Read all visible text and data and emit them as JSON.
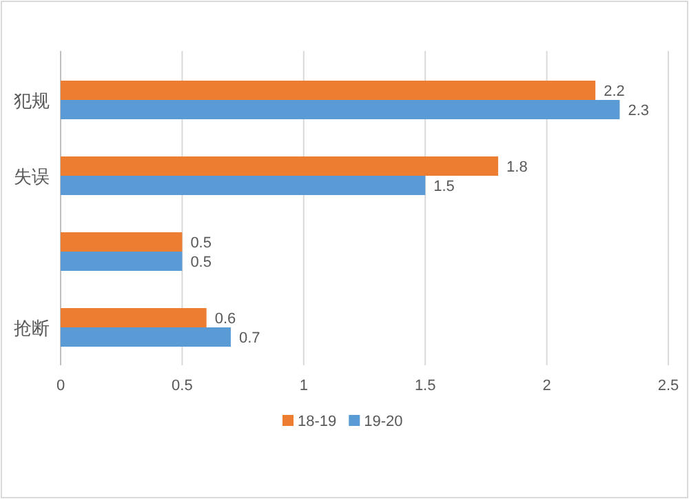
{
  "chart_data": {
    "type": "bar",
    "orientation": "horizontal",
    "categories": [
      "犯规",
      "失误",
      null,
      "抢断"
    ],
    "series": [
      {
        "name": "18-19",
        "color": "#ed7d31",
        "values": [
          2.2,
          1.8,
          0.5,
          0.6
        ]
      },
      {
        "name": "19-20",
        "color": "#5b9bd5",
        "values": [
          2.3,
          1.5,
          0.5,
          0.7
        ]
      }
    ],
    "xlim": [
      0,
      2.5
    ],
    "xticks": [
      0,
      0.5,
      1,
      1.5,
      2,
      2.5
    ],
    "grid": "x",
    "legend": "bottom",
    "data_labels": true
  }
}
